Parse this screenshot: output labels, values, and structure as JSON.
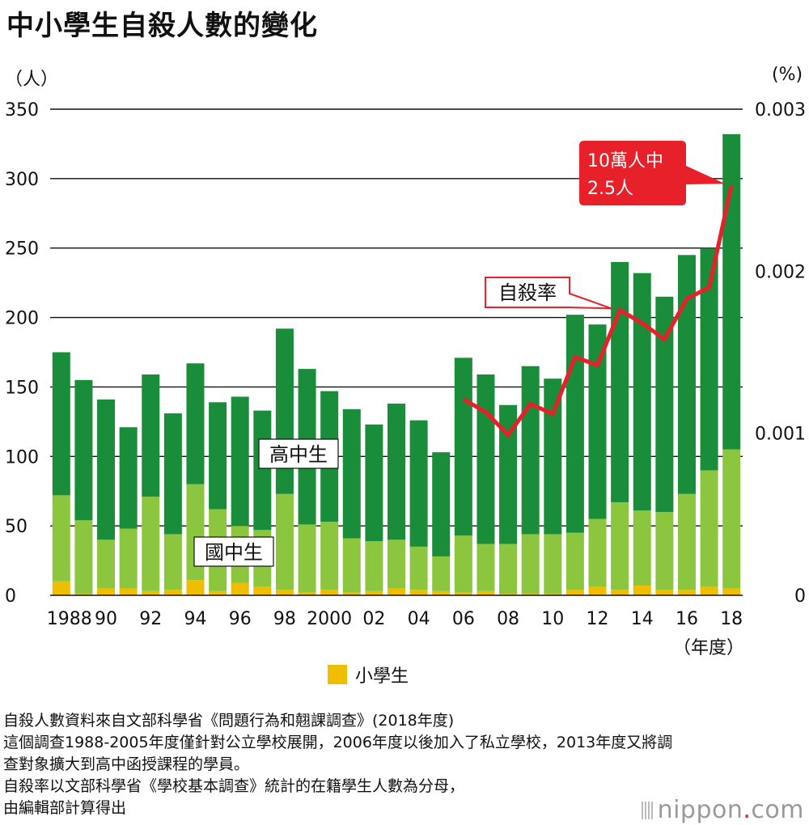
{
  "title": "中小學生自殺人數的變化",
  "left_unit": "（人）",
  "right_unit": "(%)",
  "year_unit": "（年度）",
  "chart_data": {
    "type": "bar",
    "stacked": true,
    "years": [
      1988,
      1989,
      1990,
      1991,
      1992,
      1993,
      1994,
      1995,
      1996,
      1997,
      1998,
      1999,
      2000,
      2001,
      2002,
      2003,
      2004,
      2005,
      2006,
      2007,
      2008,
      2009,
      2010,
      2011,
      2012,
      2013,
      2014,
      2015,
      2016,
      2017,
      2018
    ],
    "x_tick_labels": [
      "1988",
      "90",
      "92",
      "94",
      "96",
      "98",
      "2000",
      "02",
      "04",
      "06",
      "08",
      "10",
      "12",
      "14",
      "16",
      "18"
    ],
    "x_tick_years": [
      1988,
      1990,
      1992,
      1994,
      1996,
      1998,
      2000,
      2002,
      2004,
      2006,
      2008,
      2010,
      2012,
      2014,
      2016,
      2018
    ],
    "ylim": [
      0,
      350
    ],
    "y_ticks": [
      0,
      50,
      100,
      150,
      200,
      250,
      300,
      350
    ],
    "y2lim": [
      0,
      0.003
    ],
    "y2_ticks": [
      "0",
      "0.001",
      "0.002",
      "0.003"
    ],
    "y2_tick_values": [
      0,
      0.001,
      0.002,
      0.003
    ],
    "series": [
      {
        "name": "小學生",
        "color": "#f0be00",
        "values": [
          10,
          1,
          5,
          5,
          3,
          4,
          11,
          3,
          9,
          6,
          4,
          2,
          4,
          2,
          3,
          5,
          4,
          3,
          2,
          3,
          1,
          1,
          1,
          4,
          6,
          4,
          7,
          4,
          4,
          6,
          5
        ]
      },
      {
        "name": "國中生",
        "color": "#8cc63f",
        "values": [
          62,
          53,
          35,
          43,
          68,
          40,
          69,
          59,
          41,
          41,
          69,
          49,
          49,
          39,
          36,
          35,
          31,
          25,
          41,
          34,
          36,
          43,
          43,
          41,
          49,
          63,
          54,
          56,
          69,
          84,
          100
        ]
      },
      {
        "name": "高中生",
        "color": "#1a8d3a",
        "values": [
          103,
          101,
          101,
          73,
          88,
          87,
          87,
          77,
          93,
          86,
          119,
          112,
          94,
          93,
          84,
          98,
          91,
          75,
          128,
          122,
          100,
          121,
          112,
          157,
          140,
          173,
          171,
          155,
          172,
          160,
          227
        ]
      }
    ],
    "rate_line": {
      "name": "自殺率",
      "color": "#e8202a",
      "years": [
        2006,
        2007,
        2008,
        2009,
        2010,
        2011,
        2012,
        2013,
        2014,
        2015,
        2016,
        2017,
        2018
      ],
      "values": [
        0.00121,
        0.00113,
        0.00099,
        0.00118,
        0.00112,
        0.00147,
        0.00142,
        0.00176,
        0.00168,
        0.00158,
        0.00183,
        0.0019,
        0.00253
      ]
    },
    "annotations": {
      "high": "高中生",
      "middle": "國中生",
      "rate_label": "自殺率",
      "callout_line1": "10萬人中",
      "callout_line2": "2.5人"
    },
    "legend": {
      "label": "小學生",
      "color": "#f0be00",
      "position": "bottom-center"
    },
    "grid": true
  },
  "notes": [
    "自殺人數資料來自文部科學省《問題行為和翹課調查》(2018年度)",
    "這個調查1988-2005年度僅針對公立學校展開，2006年度以後加入了私立學校，2013年度又將調",
    "查對象擴大到高中函授課程的學員。",
    "自殺率以文部科學省《學校基本調查》統計的在籍學生人數為分母，",
    "由編輯部計算得出"
  ],
  "logo": {
    "main": "nippon",
    "dot": ".",
    "suffix": "com"
  }
}
